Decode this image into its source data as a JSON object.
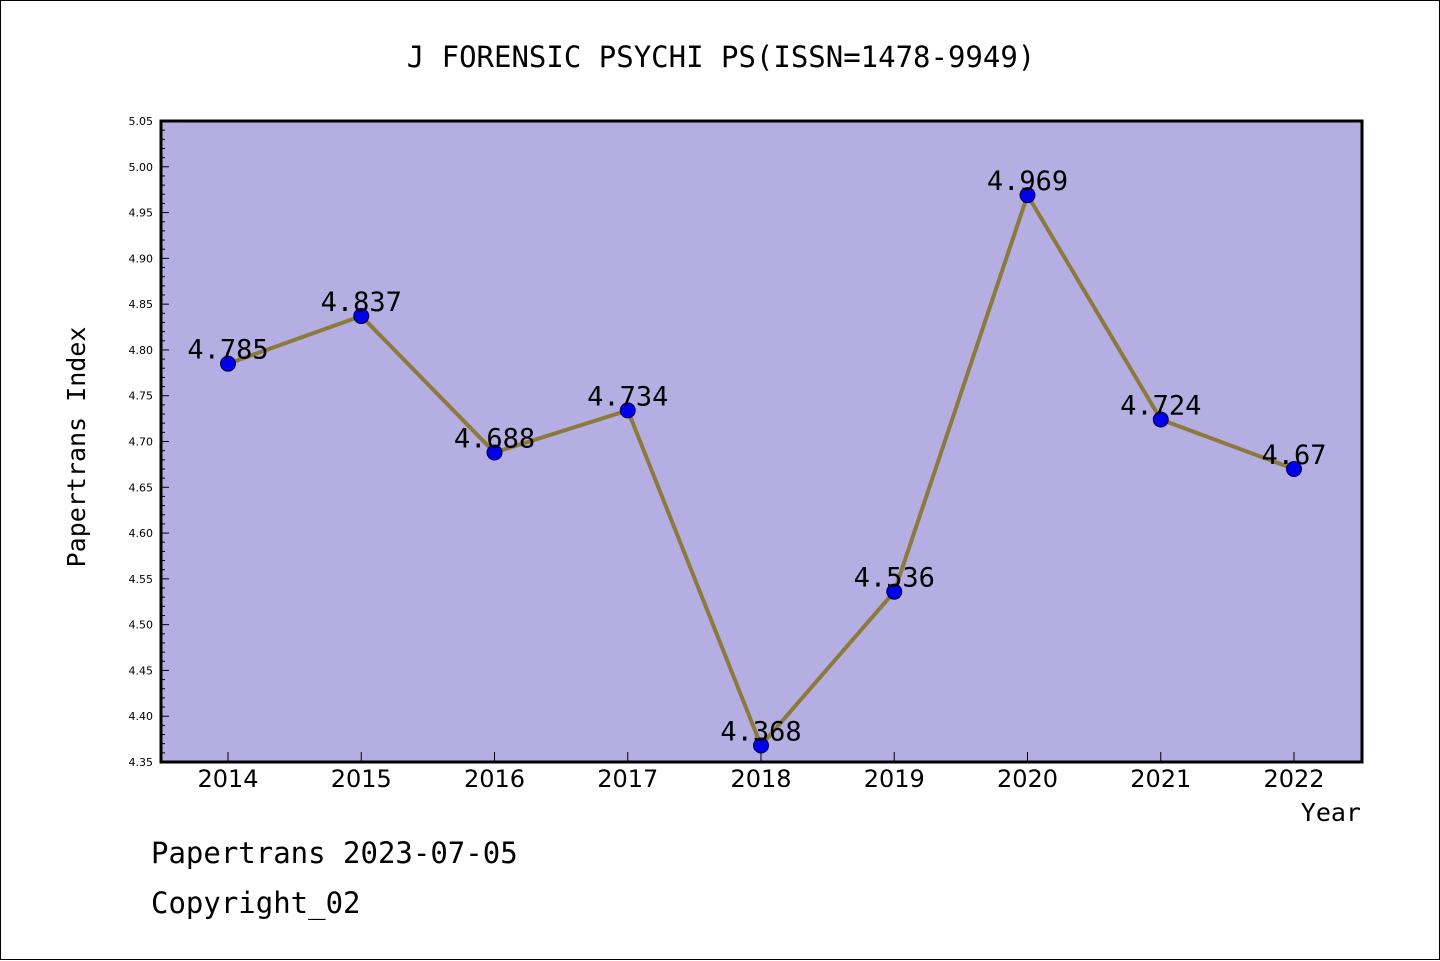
{
  "chart_data": {
    "type": "line",
    "title": "J FORENSIC PSYCHI PS(ISSN=1478-9949)",
    "xlabel": "Year",
    "ylabel": "Papertrans Index",
    "categories": [
      "2014",
      "2015",
      "2016",
      "2017",
      "2018",
      "2019",
      "2020",
      "2021",
      "2022"
    ],
    "values": [
      4.785,
      4.837,
      4.688,
      4.734,
      4.368,
      4.536,
      4.969,
      4.724,
      4.67
    ],
    "value_labels": [
      "4.785",
      "4.837",
      "4.688",
      "4.734",
      "4.368",
      "4.536",
      "4.969",
      "4.724",
      "4.67"
    ],
    "ylim": [
      4.35,
      5.05
    ],
    "yticks": [
      "4.35",
      "4.40",
      "4.45",
      "4.50",
      "4.55",
      "4.60",
      "4.65",
      "4.70",
      "4.75",
      "4.80",
      "4.85",
      "4.90",
      "4.95",
      "5.00",
      "5.05"
    ],
    "grid": false,
    "plot_background": "#b5aee2",
    "line_color": "#8c7a3c",
    "marker_color": "#0000ee"
  },
  "footer": {
    "line1": "Papertrans 2023-07-05",
    "line2": "Copyright_02"
  }
}
